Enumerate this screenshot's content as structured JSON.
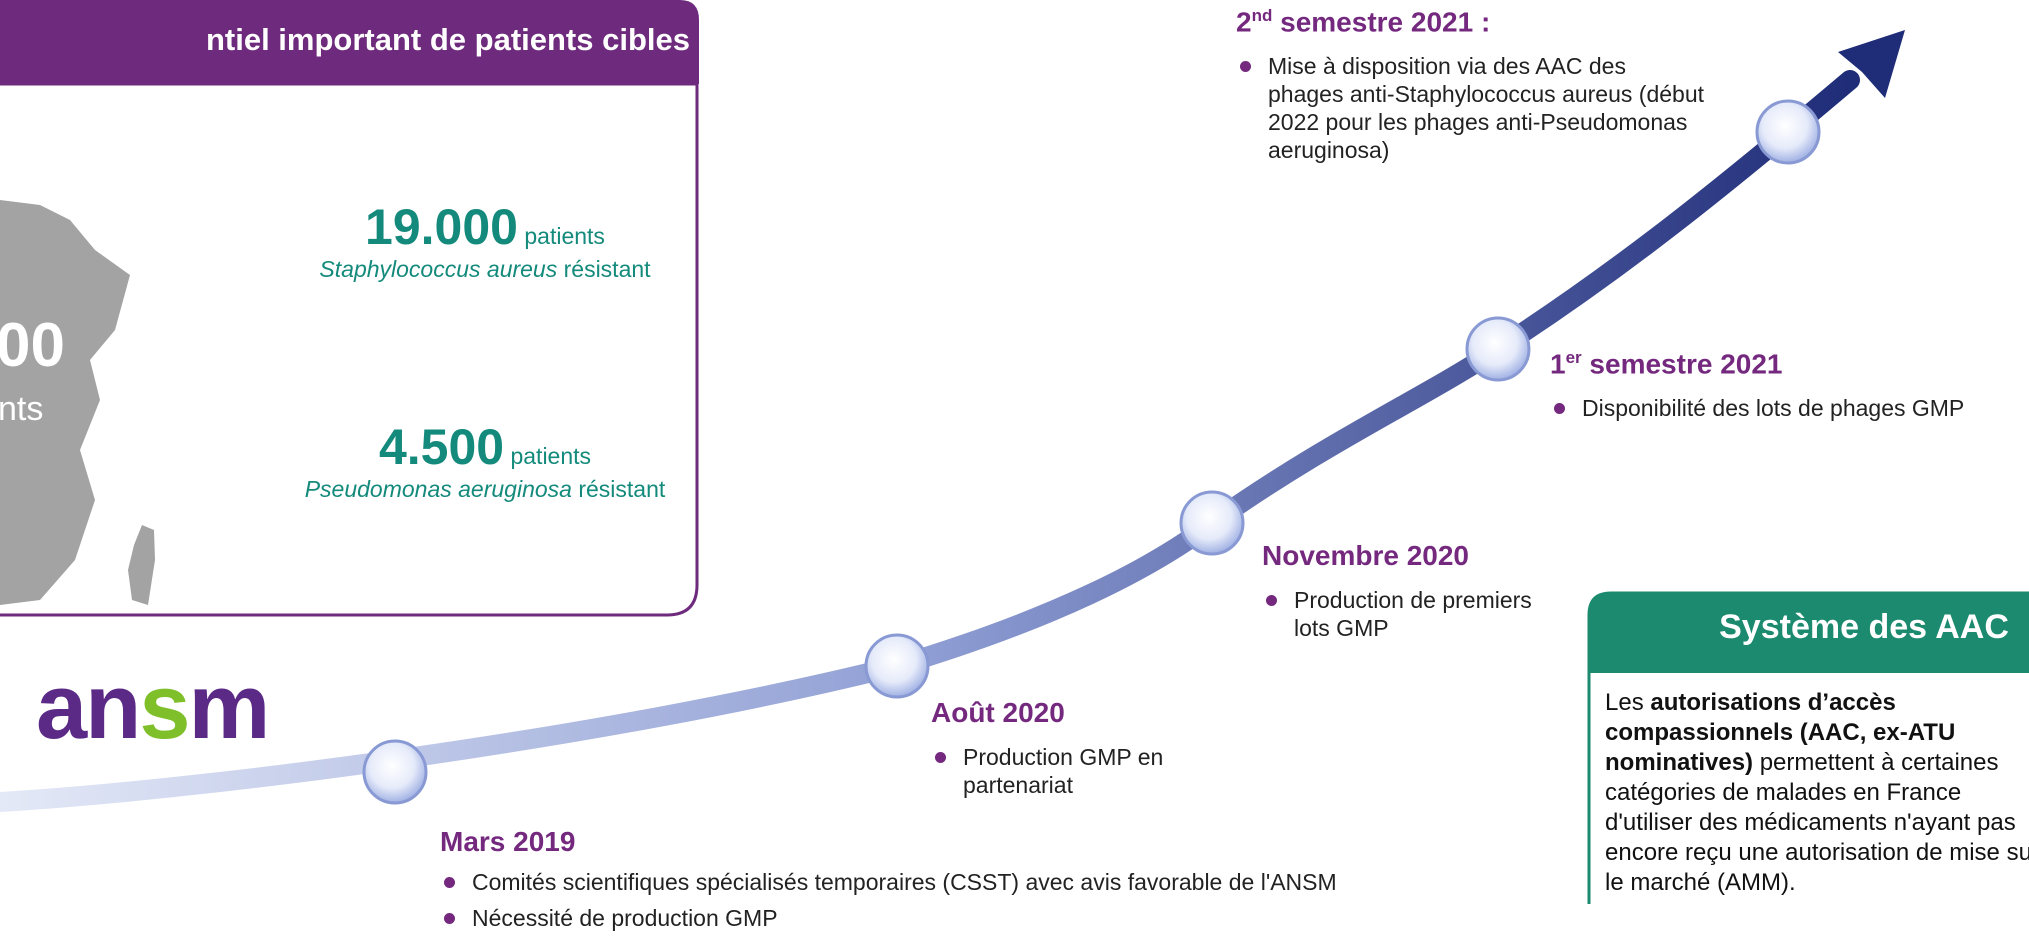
{
  "left_panel": {
    "title": "ntiel important de patients cibles",
    "map_number": "00",
    "map_unit": "nts",
    "stats": [
      {
        "number": "19.000",
        "unit": "patients",
        "species": "Staphylococcus aureus",
        "suffix": "résistant"
      },
      {
        "number": "4.500",
        "unit": "patients",
        "species": "Pseudomonas aeruginosa",
        "suffix": "résistant"
      }
    ]
  },
  "logo": {
    "parts": [
      "an",
      "s",
      "m"
    ]
  },
  "timeline": [
    {
      "title": "Mars 2019",
      "bullets": [
        "Comités scientifiques spécialisés temporaires (CSST) avec avis favorable de l'ANSM",
        "Nécessité de production GMP"
      ]
    },
    {
      "title": "Août 2020",
      "bullets": [
        "Production GMP en partenariat"
      ]
    },
    {
      "title": "Novembre 2020",
      "bullets": [
        "Production de premiers lots GMP"
      ]
    },
    {
      "title_parts": [
        "1",
        "er",
        " semestre 2021"
      ],
      "bullets": [
        "Disponibilité des lots de phages GMP"
      ]
    },
    {
      "title_parts": [
        "2",
        "nd",
        " semestre 2021 :"
      ],
      "bullets": [
        "Mise à disposition via des AAC des phages anti-Staphylococcus aureus (début 2022 pour les phages anti-Pseudomonas aeruginosa)"
      ]
    }
  ],
  "aac_box": {
    "title": "Système des AAC",
    "body": [
      "Les ",
      "autorisations d’accès compassionnels (AAC, ex-ATU nominatives)",
      " permettent à certaines catégories de malades en France d'utiliser des médicaments n'ayant pas encore reçu une autorisation de mise sur le marché (AMM)."
    ]
  }
}
